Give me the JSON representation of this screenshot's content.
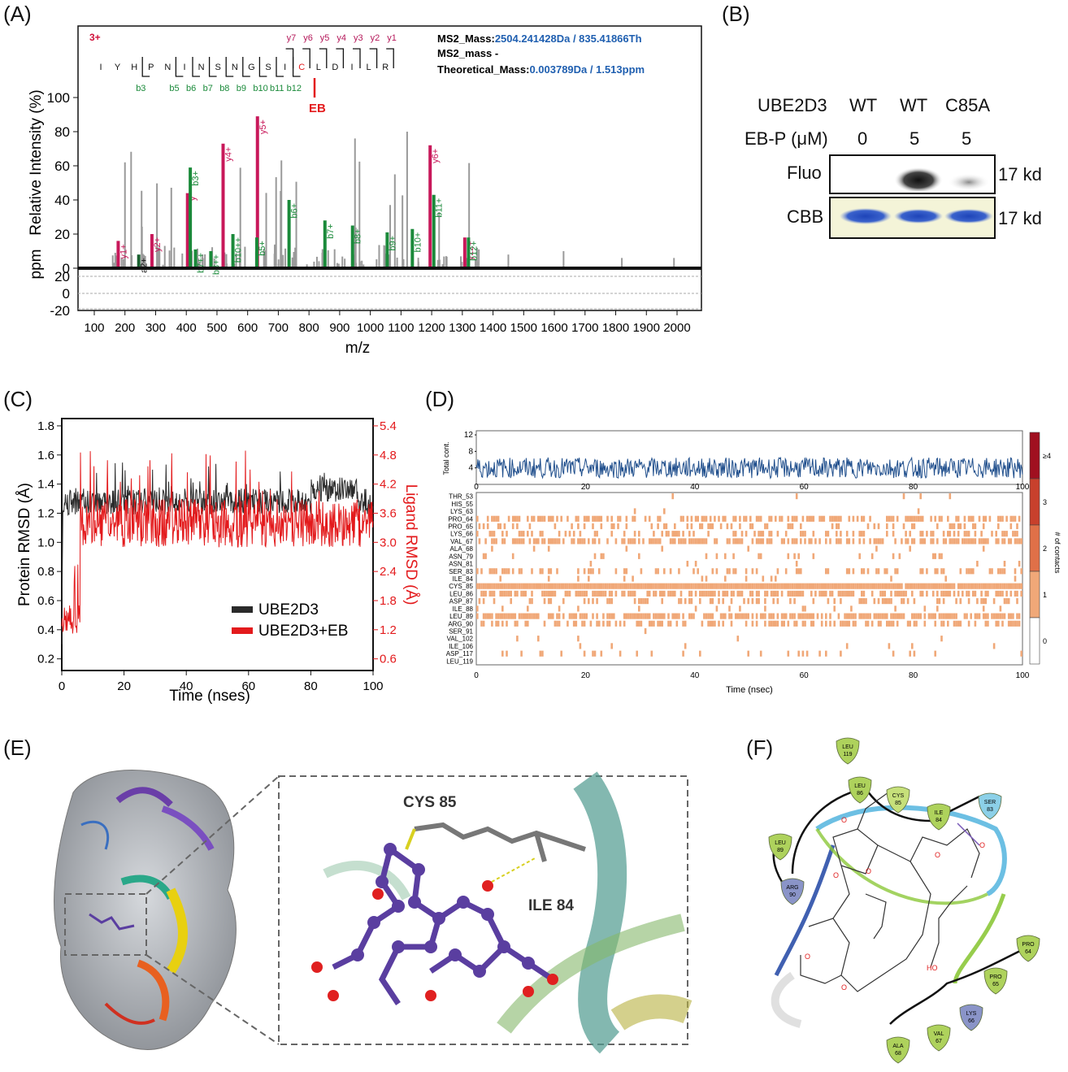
{
  "panels": {
    "a": "(A)",
    "b": "(B)",
    "c": "(C)",
    "d": "(D)",
    "e": "(E)",
    "f": "(F)"
  },
  "panel_a": {
    "charge": "3+",
    "peptide": [
      "I",
      "Y",
      "H",
      "P",
      "N",
      "I",
      "N",
      "S",
      "N",
      "G",
      "S",
      "I",
      "C",
      "L",
      "D",
      "I",
      "L",
      "R"
    ],
    "y_ions_top": [
      "y7",
      "y6",
      "y5",
      "y4",
      "y3",
      "y2",
      "y1"
    ],
    "b_ions_bottom": [
      "b3",
      "b5",
      "b6",
      "b7",
      "b8",
      "b9",
      "b10",
      "b11",
      "b12"
    ],
    "eb_mark": "EB",
    "info": {
      "line1_label": "MS2_Mass:",
      "line1_value": "2504.241428Da / 835.41866Th",
      "line2_label": "MS2_mass -",
      "line3_label": "Theoretical_Mass:",
      "line3_value": "0.003789Da / 1.513ppm"
    },
    "ylabel": "Relative Intensity (%)",
    "ppm_label": "ppm",
    "xlabel": "m/z",
    "yticks": [
      "0",
      "20",
      "40",
      "60",
      "80",
      "100"
    ],
    "ppm_ticks": [
      "20",
      "0",
      "-20"
    ],
    "xticks": [
      "100",
      "200",
      "300",
      "400",
      "500",
      "600",
      "700",
      "800",
      "900",
      "1000",
      "1100",
      "1200",
      "1300",
      "1400",
      "1500",
      "1600",
      "1700",
      "1800",
      "1900",
      "2000"
    ]
  },
  "panel_b": {
    "header_label": "UBE2D3",
    "conc_label": "EB-P (μM)",
    "lanes": [
      "WT",
      "WT",
      "C85A"
    ],
    "conc": [
      "0",
      "5",
      "5"
    ],
    "rows": [
      "Fluo",
      "CBB"
    ],
    "size": "17 kd",
    "colors": {
      "cbb": "#2e55c8",
      "cbb_bg": "#f4f4d8"
    }
  },
  "panel_c": {
    "ylabel_left": "Protein RMSD (Å)",
    "ylabel_right": "Ligand RMSD (Å)",
    "xlabel": "Time (nses)",
    "yticks_left": [
      "0.2",
      "0.4",
      "0.6",
      "0.8",
      "1.0",
      "1.2",
      "1.4",
      "1.6",
      "1.8"
    ],
    "yticks_right": [
      "0.6",
      "1.2",
      "1.8",
      "2.4",
      "3.0",
      "3.6",
      "4.2",
      "4.8",
      "5.4"
    ],
    "xticks": [
      "0",
      "20",
      "40",
      "60",
      "80",
      "100"
    ],
    "legend": [
      "UBE2D3",
      "UBE2D3+EB"
    ],
    "colors": {
      "protein": "#2a2a2a",
      "ligand": "#e31a1c"
    }
  },
  "panel_d": {
    "top_ylabel": "Total cont.",
    "top_yticks": [
      "12",
      "8",
      "4"
    ],
    "xticks": [
      "0",
      "20",
      "40",
      "60",
      "80",
      "100"
    ],
    "xlabel": "Time (nsec)",
    "residues": [
      "THR_53",
      "HIS_55",
      "LYS_63",
      "PRO_64",
      "PRO_65",
      "LYS_66",
      "VAL_67",
      "ALA_68",
      "ASN_79",
      "ASN_81",
      "SER_83",
      "ILE_84",
      "CYS_85",
      "LEU_86",
      "ASP_87",
      "ILE_88",
      "LEU_89",
      "ARG_90",
      "SER_91",
      "VAL_102",
      "ILE_106",
      "ASP_117",
      "LEU_119"
    ],
    "colorbar_ticks": [
      "≥4",
      "3",
      "2",
      "1",
      "0"
    ],
    "colorbar_label": "# of contacts",
    "colors": {
      "line": "#1f4e8c",
      "contact": "#f0a878"
    }
  },
  "panel_e": {
    "labels": [
      "CYS 85",
      "ILE 84"
    ]
  },
  "panel_f": {
    "residues": [
      "LEU 119",
      "LEU 86",
      "CYS 85",
      "ILE 84",
      "SER 83",
      "LEU 89",
      "ARG 90",
      "PRO 64",
      "PRO 65",
      "LYS 66",
      "VAL 67",
      "ALA 68"
    ]
  }
}
